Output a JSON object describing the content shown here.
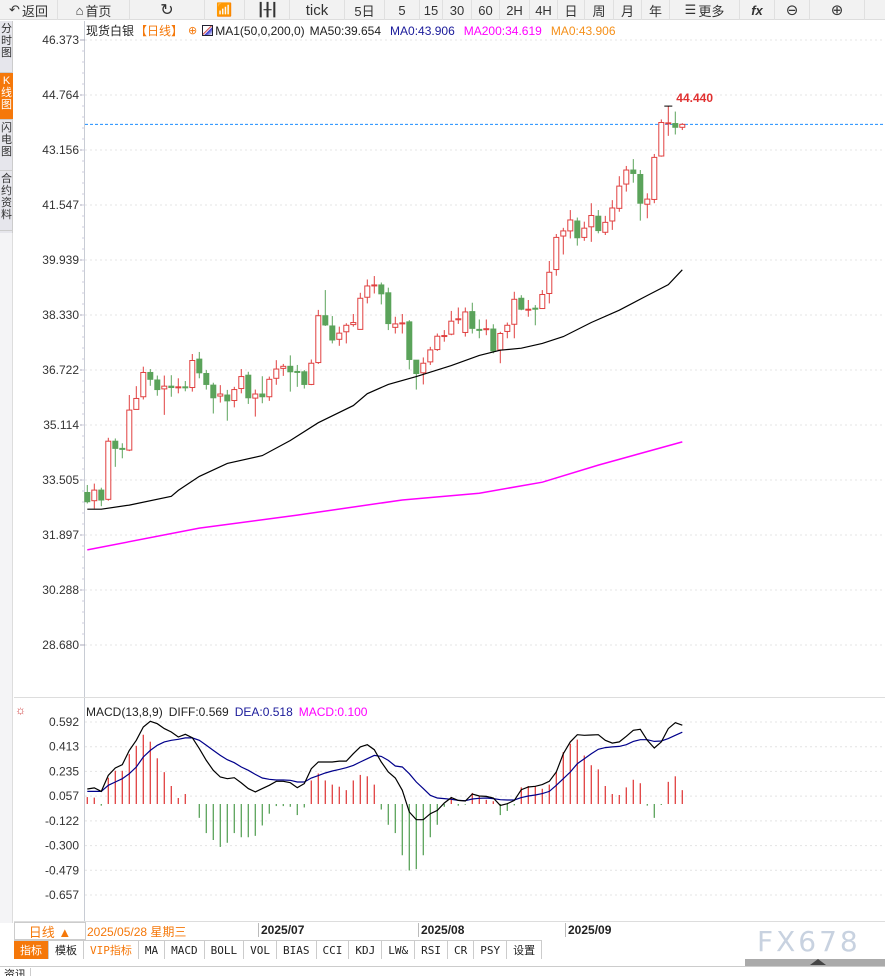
{
  "toolbar": {
    "back": "返回",
    "home": "首页",
    "tick": "tick",
    "five_day": "5日",
    "periods": [
      "5",
      "15",
      "30",
      "60",
      "2H",
      "4H",
      "日",
      "周",
      "月",
      "年"
    ],
    "more": "更多",
    "fx": "fx"
  },
  "sidebar": [
    {
      "label": "分时图"
    },
    {
      "label": "K线图",
      "active": true
    },
    {
      "label": "闪电图"
    },
    {
      "label": "合约资料"
    }
  ],
  "legend": {
    "symbol": "现货白银",
    "period": "【日线】",
    "ma_name": "MA1(50,0,200,0)",
    "ma50": "MA50:39.654",
    "ma0a": "MA0:43.906",
    "ma200": "MA200:34.619",
    "ma0b": "MA0:43.906"
  },
  "macd_legend": {
    "name": "MACD(13,8,9)",
    "diff": "DIFF:0.569",
    "dea": "DEA:0.518",
    "macd": "MACD:0.100"
  },
  "colors": {
    "up": "#e04040",
    "down": "#5ba35b",
    "ma50": "#000000",
    "ma200": "#ff00ff",
    "dea": "#00008b",
    "accent": "#f5780a",
    "current": "#1e8fff"
  },
  "bottom": {
    "period_label": "日线 ▲",
    "start_date": "2025/05/28 星期三",
    "months": [
      "2025/07",
      "2025/08",
      "2025/09"
    ]
  },
  "tabs": [
    "指标",
    "模板",
    "VIP指标",
    "MA",
    "MACD",
    "BOLL",
    "VOL",
    "BIAS",
    "CCI",
    "KDJ",
    "LW&",
    "RSI",
    "CR",
    "PSY",
    "设置"
  ],
  "news_tab": "资讯",
  "watermark": "FX678",
  "chart_data": {
    "type": "candlestick",
    "price_axis": [
      "46.373",
      "44.764",
      "43.156",
      "41.547",
      "39.939",
      "38.330",
      "36.722",
      "35.114",
      "33.505",
      "31.897",
      "30.288",
      "28.680"
    ],
    "ylim": [
      28.68,
      46.373
    ],
    "current_price": 43.906,
    "high_marker": "44.440",
    "candles_ohlc": [
      [
        33.14,
        33.36,
        32.82,
        32.87
      ],
      [
        32.9,
        33.4,
        32.67,
        33.21
      ],
      [
        33.21,
        33.28,
        32.74,
        32.92
      ],
      [
        32.94,
        34.74,
        32.9,
        34.64
      ],
      [
        34.64,
        34.72,
        33.89,
        34.43
      ],
      [
        34.43,
        34.58,
        34.14,
        34.41
      ],
      [
        34.38,
        35.99,
        34.35,
        35.55
      ],
      [
        35.57,
        36.25,
        35.57,
        35.89
      ],
      [
        35.94,
        36.82,
        35.86,
        36.65
      ],
      [
        36.65,
        36.75,
        36.26,
        36.45
      ],
      [
        36.43,
        36.56,
        35.97,
        36.15
      ],
      [
        36.17,
        36.56,
        35.41,
        36.25
      ],
      [
        36.25,
        36.57,
        35.94,
        36.21
      ],
      [
        36.21,
        36.48,
        36.04,
        36.23
      ],
      [
        36.23,
        36.4,
        36.1,
        36.21
      ],
      [
        36.21,
        37.19,
        36.09,
        37.0
      ],
      [
        37.04,
        37.25,
        36.48,
        36.64
      ],
      [
        36.62,
        36.72,
        36.15,
        36.3
      ],
      [
        36.28,
        36.35,
        35.45,
        35.91
      ],
      [
        35.96,
        36.28,
        35.77,
        36.02
      ],
      [
        35.99,
        36.14,
        35.24,
        35.82
      ],
      [
        35.83,
        36.23,
        35.63,
        36.15
      ],
      [
        36.18,
        36.75,
        36.04,
        36.53
      ],
      [
        36.57,
        36.67,
        35.73,
        35.91
      ],
      [
        35.9,
        36.15,
        35.36,
        36.02
      ],
      [
        36.02,
        36.54,
        35.75,
        35.94
      ],
      [
        35.94,
        36.53,
        35.82,
        36.45
      ],
      [
        36.48,
        37.01,
        36.29,
        36.75
      ],
      [
        36.77,
        36.9,
        36.55,
        36.83
      ],
      [
        36.83,
        37.15,
        36.09,
        36.67
      ],
      [
        36.68,
        36.87,
        36.23,
        36.66
      ],
      [
        36.67,
        36.72,
        36.18,
        36.3
      ],
      [
        36.3,
        37.03,
        36.28,
        36.92
      ],
      [
        36.94,
        38.48,
        36.9,
        38.31
      ],
      [
        38.31,
        39.06,
        38.01,
        38.04
      ],
      [
        38.01,
        38.3,
        37.5,
        37.6
      ],
      [
        37.62,
        37.99,
        37.43,
        37.8
      ],
      [
        37.84,
        38.09,
        37.5,
        38.03
      ],
      [
        38.05,
        38.36,
        37.99,
        38.11
      ],
      [
        37.91,
        38.98,
        37.91,
        38.82
      ],
      [
        38.85,
        39.37,
        38.67,
        39.18
      ],
      [
        39.21,
        39.47,
        38.96,
        39.21
      ],
      [
        39.21,
        39.28,
        38.64,
        38.95
      ],
      [
        38.98,
        39.13,
        37.89,
        38.08
      ],
      [
        37.97,
        38.28,
        37.79,
        38.07
      ],
      [
        38.1,
        38.36,
        37.79,
        38.1
      ],
      [
        38.13,
        38.18,
        36.74,
        37.03
      ],
      [
        37.01,
        37.01,
        36.15,
        36.62
      ],
      [
        36.64,
        37.09,
        36.3,
        36.92
      ],
      [
        36.96,
        37.4,
        36.87,
        37.31
      ],
      [
        37.32,
        37.79,
        37.28,
        37.71
      ],
      [
        37.71,
        37.89,
        37.55,
        37.73
      ],
      [
        37.77,
        38.45,
        37.74,
        38.15
      ],
      [
        38.2,
        38.55,
        38.07,
        38.22
      ],
      [
        37.82,
        38.55,
        37.7,
        38.42
      ],
      [
        38.43,
        38.69,
        37.79,
        37.94
      ],
      [
        37.91,
        38.2,
        37.65,
        37.9
      ],
      [
        37.91,
        38.2,
        37.74,
        37.93
      ],
      [
        37.92,
        38.06,
        37.21,
        37.28
      ],
      [
        37.31,
        37.84,
        36.92,
        37.79
      ],
      [
        37.85,
        38.11,
        37.65,
        38.03
      ],
      [
        38.06,
        39.01,
        37.65,
        38.79
      ],
      [
        38.82,
        38.91,
        38.47,
        38.5
      ],
      [
        38.48,
        38.77,
        38.28,
        38.5
      ],
      [
        38.53,
        38.62,
        38.03,
        38.5
      ],
      [
        38.52,
        39.06,
        38.52,
        38.93
      ],
      [
        38.96,
        39.91,
        38.67,
        39.58
      ],
      [
        39.66,
        40.7,
        39.48,
        40.6
      ],
      [
        40.64,
        40.88,
        40.1,
        40.79
      ],
      [
        40.79,
        41.4,
        40.57,
        41.11
      ],
      [
        41.08,
        41.18,
        40.36,
        40.59
      ],
      [
        40.6,
        41.06,
        40.5,
        40.87
      ],
      [
        40.91,
        41.6,
        40.47,
        41.24
      ],
      [
        41.22,
        41.4,
        40.72,
        40.8
      ],
      [
        40.75,
        41.23,
        40.67,
        41.04
      ],
      [
        41.08,
        41.69,
        40.82,
        41.46
      ],
      [
        41.45,
        42.39,
        41.35,
        42.1
      ],
      [
        42.16,
        42.69,
        41.94,
        42.57
      ],
      [
        42.57,
        42.89,
        42.2,
        42.47
      ],
      [
        42.44,
        42.57,
        41.09,
        41.6
      ],
      [
        41.57,
        41.89,
        41.16,
        41.72
      ],
      [
        41.71,
        43.04,
        41.6,
        42.94
      ],
      [
        42.98,
        44.05,
        42.96,
        43.96
      ],
      [
        43.93,
        44.44,
        43.57,
        43.95
      ],
      [
        43.93,
        44.28,
        43.61,
        43.82
      ],
      [
        43.82,
        43.94,
        43.74,
        43.906
      ]
    ],
    "ma50_points": [
      [
        0,
        32.65
      ],
      [
        2,
        32.65
      ],
      [
        6,
        32.77
      ],
      [
        12,
        33.03
      ],
      [
        13,
        33.2
      ],
      [
        16,
        33.61
      ],
      [
        20,
        33.99
      ],
      [
        25,
        34.22
      ],
      [
        29,
        34.66
      ],
      [
        33,
        35.18
      ],
      [
        38,
        35.68
      ],
      [
        40,
        36.03
      ],
      [
        43,
        36.3
      ],
      [
        47,
        36.53
      ],
      [
        52,
        36.85
      ],
      [
        56,
        37.15
      ],
      [
        59,
        37.3
      ],
      [
        62,
        37.36
      ],
      [
        65,
        37.5
      ],
      [
        68,
        37.7
      ],
      [
        72,
        38.11
      ],
      [
        76,
        38.47
      ],
      [
        80,
        38.9
      ],
      [
        83,
        39.22
      ],
      [
        85,
        39.654
      ]
    ],
    "ma200_points": [
      [
        0,
        31.46
      ],
      [
        16,
        32.1
      ],
      [
        30,
        32.48
      ],
      [
        45,
        32.92
      ],
      [
        56,
        33.12
      ],
      [
        65,
        33.44
      ],
      [
        73,
        33.94
      ],
      [
        85,
        34.619
      ]
    ],
    "macd_axis": [
      "0.592",
      "0.413",
      "0.235",
      "0.057",
      "-0.122",
      "-0.300",
      "-0.479",
      "-0.657"
    ],
    "macd_ylim": [
      -0.657,
      0.592
    ],
    "macd_hist": [
      0.05,
      0.046,
      -0.012,
      0.19,
      0.24,
      0.24,
      0.36,
      0.42,
      0.5,
      0.45,
      0.33,
      0.23,
      0.13,
      0.043,
      0.072,
      0,
      -0.1,
      -0.21,
      -0.26,
      -0.31,
      -0.28,
      -0.21,
      -0.24,
      -0.24,
      -0.23,
      -0.155,
      -0.07,
      -0.015,
      -0.015,
      -0.02,
      -0.08,
      -0.025,
      0.17,
      0.22,
      0.17,
      0.14,
      0.125,
      0.1,
      0.17,
      0.21,
      0.2,
      0.14,
      -0.04,
      -0.15,
      -0.21,
      -0.37,
      -0.48,
      -0.47,
      -0.37,
      -0.24,
      -0.15,
      -0.02,
      0.05,
      -0.012,
      -0.005,
      0.08,
      0.055,
      0.03,
      0.02,
      -0.08,
      -0.05,
      -0.01,
      0.12,
      0.13,
      0.13,
      0.11,
      0.14,
      0.23,
      0.375,
      0.435,
      0.465,
      0.35,
      0.28,
      0.25,
      0.13,
      0.072,
      0.065,
      0.12,
      0.175,
      0.15,
      -0.012,
      -0.1,
      -0.007,
      0.16,
      0.2,
      0.1
    ],
    "diff": [
      0.108,
      0.116,
      0.091,
      0.207,
      0.26,
      0.284,
      0.387,
      0.46,
      0.556,
      0.597,
      0.58,
      0.544,
      0.52,
      0.484,
      0.503,
      0.479,
      0.4,
      0.315,
      0.243,
      0.195,
      0.183,
      0.19,
      0.152,
      0.111,
      0.087,
      0.111,
      0.135,
      0.164,
      0.164,
      0.154,
      0.118,
      0.147,
      0.255,
      0.303,
      0.303,
      0.303,
      0.31,
      0.31,
      0.363,
      0.412,
      0.428,
      0.392,
      0.303,
      0.231,
      0.188,
      0.099,
      -0.058,
      -0.113,
      -0.113,
      -0.07,
      -0.046,
      0.007,
      0.046,
      0.026,
      0.022,
      0.072,
      0.058,
      0.055,
      0.043,
      -0.01,
      0.002,
      0.026,
      0.103,
      0.123,
      0.128,
      0.14,
      0.164,
      0.231,
      0.363,
      0.448,
      0.5,
      0.496,
      0.498,
      0.5,
      0.46,
      0.44,
      0.448,
      0.489,
      0.532,
      0.539,
      0.46,
      0.404,
      0.448,
      0.544,
      0.587,
      0.569
    ],
    "dea": [
      0.091,
      0.091,
      0.091,
      0.135,
      0.159,
      0.183,
      0.219,
      0.267,
      0.339,
      0.387,
      0.424,
      0.448,
      0.46,
      0.467,
      0.477,
      0.477,
      0.46,
      0.424,
      0.387,
      0.351,
      0.32,
      0.298,
      0.267,
      0.243,
      0.214,
      0.188,
      0.178,
      0.173,
      0.173,
      0.171,
      0.159,
      0.159,
      0.188,
      0.205,
      0.224,
      0.238,
      0.25,
      0.262,
      0.279,
      0.303,
      0.327,
      0.351,
      0.344,
      0.315,
      0.274,
      0.267,
      0.219,
      0.159,
      0.111,
      0.063,
      0.043,
      0.039,
      0.034,
      0.026,
      0.024,
      0.036,
      0.041,
      0.043,
      0.039,
      0.031,
      0.029,
      0.029,
      0.046,
      0.058,
      0.065,
      0.075,
      0.091,
      0.135,
      0.183,
      0.231,
      0.291,
      0.327,
      0.363,
      0.395,
      0.407,
      0.412,
      0.416,
      0.428,
      0.452,
      0.464,
      0.464,
      0.452,
      0.455,
      0.472,
      0.496,
      0.518
    ]
  }
}
